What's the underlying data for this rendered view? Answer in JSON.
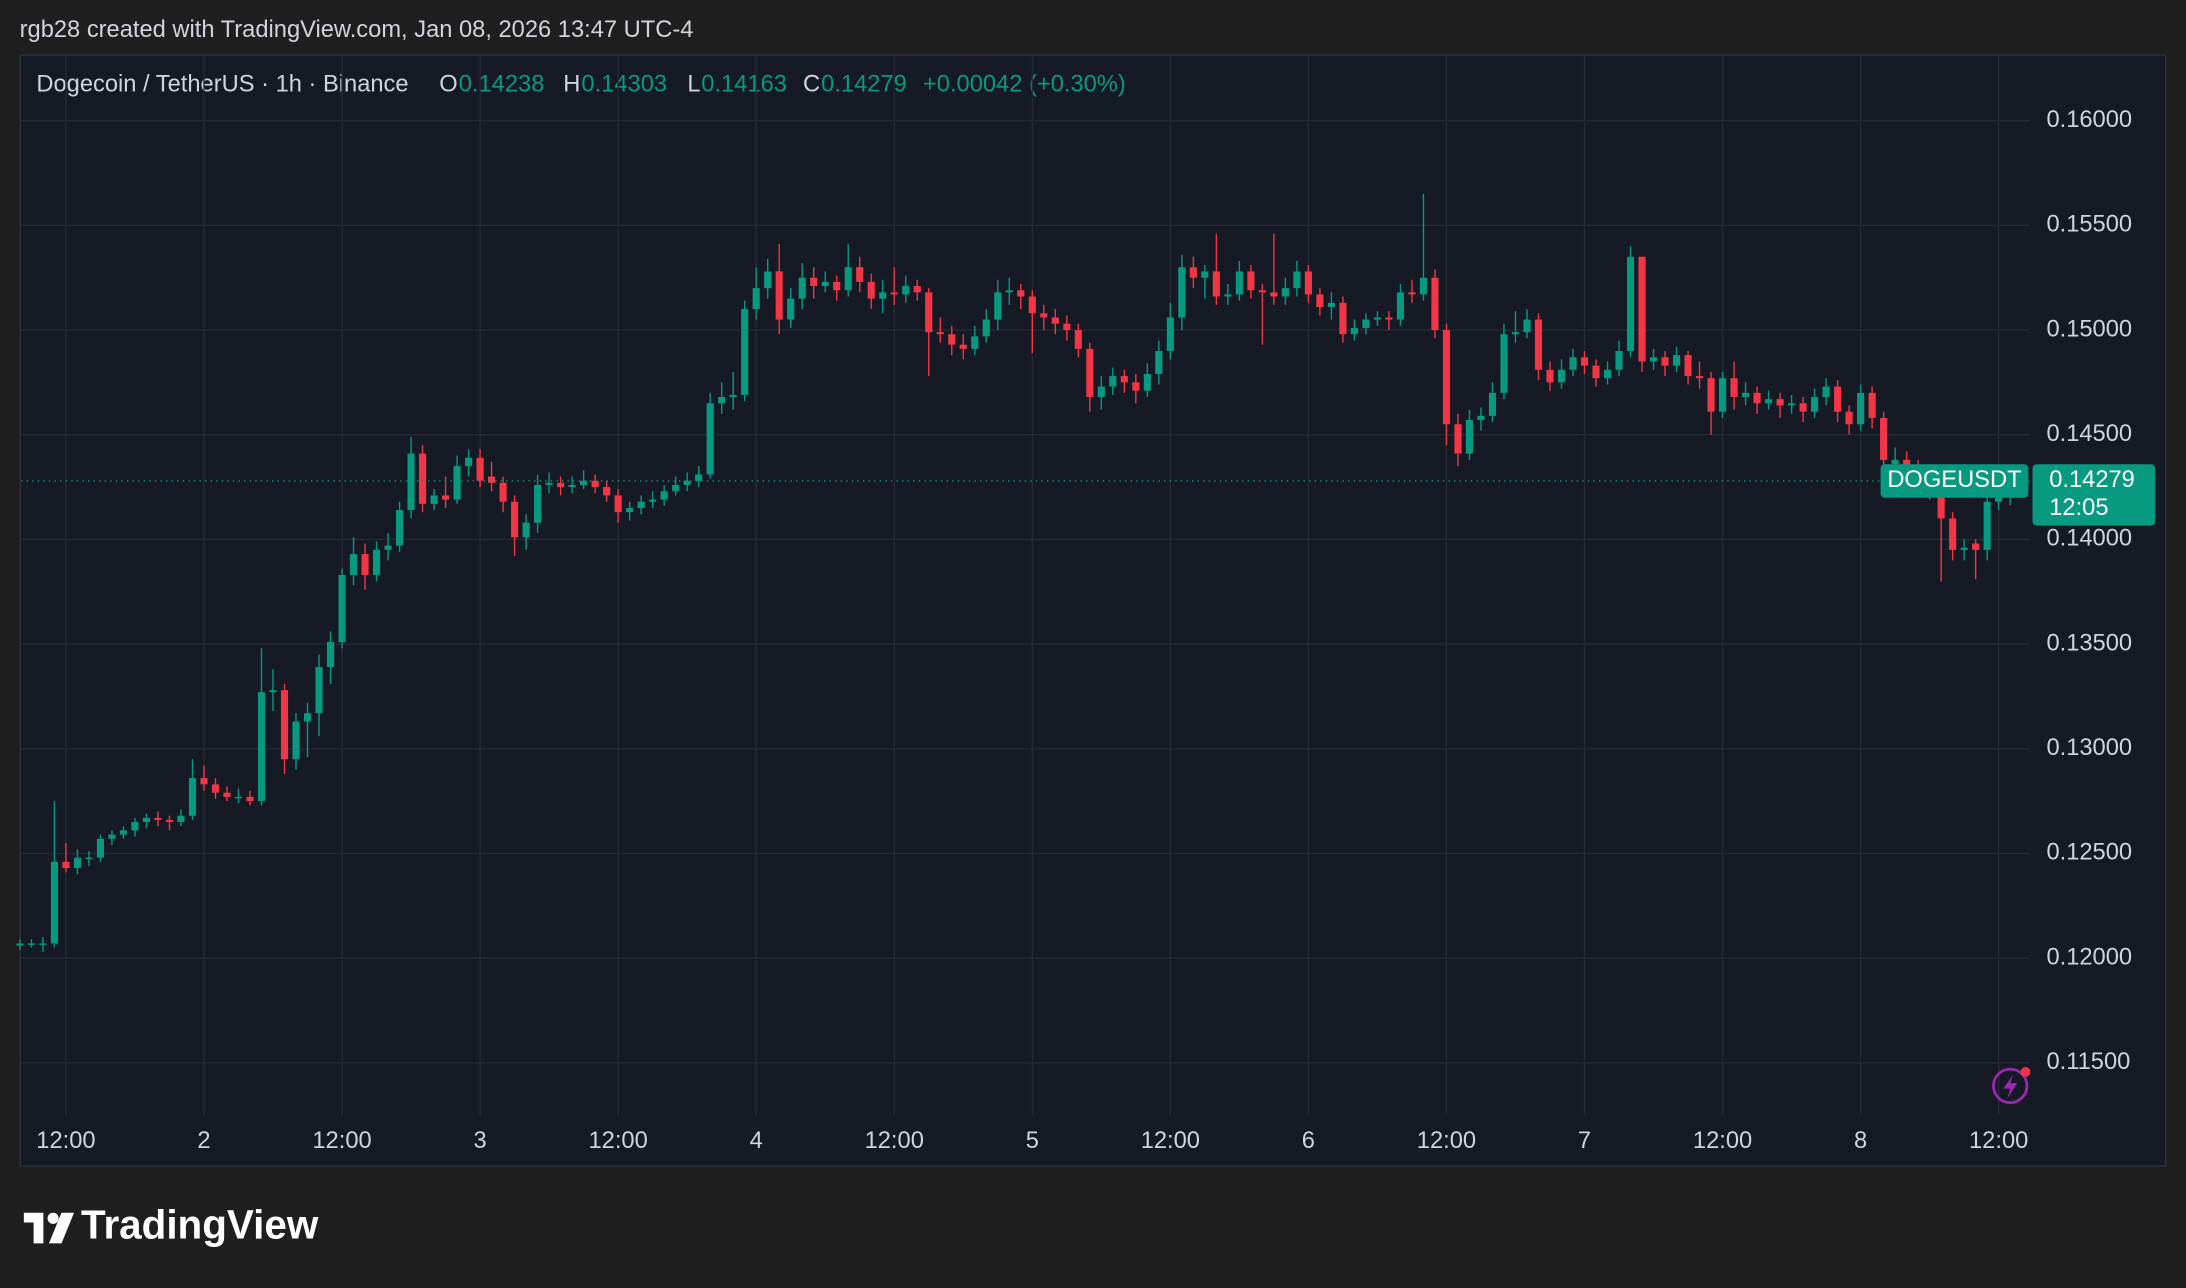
{
  "header": {
    "attribution": "rgb28 created with TradingView.com, Jan 08, 2026 13:47 UTC-4",
    "symbol_line": "Dogecoin / TetherUS · 1h · Binance",
    "labels": [
      "O",
      "H",
      "L",
      "C"
    ],
    "change": "+0.00042 (+0.30%)",
    "ticker": "DOGEUSDT",
    "countdown": "12:05"
  },
  "footer": {
    "brand": "TradingView"
  },
  "chart_data": {
    "type": "candlestick",
    "up_color": "#089981",
    "down_color": "#f23645",
    "grid": true,
    "xlim": [
      0.1,
      174.7
    ],
    "ylim": [
      0.1125,
      0.1631
    ],
    "xticks": [
      {
        "value": 4,
        "label": "12:00"
      },
      {
        "value": 16,
        "label": "2"
      },
      {
        "value": 28,
        "label": "12:00"
      },
      {
        "value": 40,
        "label": "3"
      },
      {
        "value": 52,
        "label": "12:00"
      },
      {
        "value": 64,
        "label": "4"
      },
      {
        "value": 76,
        "label": "12:00"
      },
      {
        "value": 88,
        "label": "5"
      },
      {
        "value": 100,
        "label": "12:00"
      },
      {
        "value": 112,
        "label": "6"
      },
      {
        "value": 124,
        "label": "12:00"
      },
      {
        "value": 136,
        "label": "7"
      },
      {
        "value": 148,
        "label": "12:00"
      },
      {
        "value": 160,
        "label": "8"
      },
      {
        "value": 172,
        "label": "12:00"
      }
    ],
    "yticks": [
      {
        "value": 0.115,
        "label": "0.11500"
      },
      {
        "value": 0.12,
        "label": "0.12000"
      },
      {
        "value": 0.125,
        "label": "0.12500"
      },
      {
        "value": 0.13,
        "label": "0.13000"
      },
      {
        "value": 0.135,
        "label": "0.13500"
      },
      {
        "value": 0.14,
        "label": "0.14000"
      },
      {
        "value": 0.145,
        "label": "0.14500"
      },
      {
        "value": 0.15,
        "label": "0.15000"
      },
      {
        "value": 0.155,
        "label": "0.15500"
      },
      {
        "value": 0.16,
        "label": "0.16000"
      }
    ],
    "ohlc": [
      [
        0.1206,
        0.1209,
        0.1204,
        0.1207
      ],
      [
        0.1207,
        0.1209,
        0.1205,
        0.1207
      ],
      [
        0.1207,
        0.121,
        0.1203,
        0.1207
      ],
      [
        0.1207,
        0.1275,
        0.1205,
        0.1246
      ],
      [
        0.1246,
        0.1255,
        0.1241,
        0.1243
      ],
      [
        0.1243,
        0.1252,
        0.124,
        0.1248
      ],
      [
        0.1248,
        0.1251,
        0.1244,
        0.1248
      ],
      [
        0.1248,
        0.1259,
        0.1246,
        0.1257
      ],
      [
        0.1257,
        0.1261,
        0.1254,
        0.1259
      ],
      [
        0.1259,
        0.1263,
        0.1257,
        0.1261
      ],
      [
        0.1261,
        0.1267,
        0.1258,
        0.1265
      ],
      [
        0.1265,
        0.1269,
        0.1262,
        0.1267
      ],
      [
        0.1267,
        0.127,
        0.1263,
        0.1266
      ],
      [
        0.1266,
        0.1268,
        0.1261,
        0.1265
      ],
      [
        0.1265,
        0.1271,
        0.1263,
        0.1268
      ],
      [
        0.1268,
        0.1295,
        0.1266,
        0.1286
      ],
      [
        0.1286,
        0.1292,
        0.128,
        0.1283
      ],
      [
        0.1283,
        0.1286,
        0.1276,
        0.1279
      ],
      [
        0.1279,
        0.1282,
        0.1275,
        0.1277
      ],
      [
        0.1277,
        0.1281,
        0.1274,
        0.1277
      ],
      [
        0.1277,
        0.128,
        0.1273,
        0.1275
      ],
      [
        0.1275,
        0.1348,
        0.1273,
        0.1327
      ],
      [
        0.1327,
        0.1338,
        0.1318,
        0.1328
      ],
      [
        0.1328,
        0.1331,
        0.1288,
        0.1295
      ],
      [
        0.1295,
        0.1317,
        0.129,
        0.1313
      ],
      [
        0.1313,
        0.1322,
        0.1296,
        0.1317
      ],
      [
        0.1317,
        0.1345,
        0.1306,
        0.1339
      ],
      [
        0.1339,
        0.1356,
        0.1331,
        0.1351
      ],
      [
        0.1351,
        0.1386,
        0.1348,
        0.1383
      ],
      [
        0.1383,
        0.1401,
        0.1378,
        0.1393
      ],
      [
        0.1393,
        0.1398,
        0.1376,
        0.1383
      ],
      [
        0.1383,
        0.1399,
        0.138,
        0.1395
      ],
      [
        0.1395,
        0.1403,
        0.139,
        0.1397
      ],
      [
        0.1397,
        0.1418,
        0.1394,
        0.1414
      ],
      [
        0.1414,
        0.1449,
        0.141,
        0.1441
      ],
      [
        0.1441,
        0.1445,
        0.1413,
        0.1417
      ],
      [
        0.1417,
        0.1424,
        0.1414,
        0.1421
      ],
      [
        0.1421,
        0.143,
        0.1415,
        0.1419
      ],
      [
        0.1419,
        0.144,
        0.1417,
        0.1435
      ],
      [
        0.1435,
        0.1443,
        0.143,
        0.1439
      ],
      [
        0.1439,
        0.1443,
        0.1425,
        0.1428
      ],
      [
        0.143,
        0.1437,
        0.1423,
        0.1427
      ],
      [
        0.1427,
        0.143,
        0.1413,
        0.1418
      ],
      [
        0.1418,
        0.1421,
        0.1392,
        0.1401
      ],
      [
        0.1401,
        0.1412,
        0.1395,
        0.1408
      ],
      [
        0.1408,
        0.1431,
        0.1403,
        0.1426
      ],
      [
        0.1426,
        0.1432,
        0.1422,
        0.1427
      ],
      [
        0.1427,
        0.143,
        0.1421,
        0.1425
      ],
      [
        0.1425,
        0.143,
        0.1422,
        0.1426
      ],
      [
        0.1426,
        0.1433,
        0.1424,
        0.1428
      ],
      [
        0.1428,
        0.1431,
        0.1422,
        0.1425
      ],
      [
        0.1425,
        0.1428,
        0.1418,
        0.1421
      ],
      [
        0.1421,
        0.1424,
        0.1408,
        0.1413
      ],
      [
        0.1413,
        0.1418,
        0.1409,
        0.1415
      ],
      [
        0.1415,
        0.1421,
        0.1412,
        0.1418
      ],
      [
        0.1418,
        0.1423,
        0.1415,
        0.1419
      ],
      [
        0.1419,
        0.1426,
        0.1416,
        0.1423
      ],
      [
        0.1423,
        0.143,
        0.1421,
        0.1426
      ],
      [
        0.1426,
        0.1432,
        0.1423,
        0.1428
      ],
      [
        0.1428,
        0.1435,
        0.1425,
        0.1431
      ],
      [
        0.1431,
        0.147,
        0.1429,
        0.1465
      ],
      [
        0.1465,
        0.1475,
        0.146,
        0.1468
      ],
      [
        0.1468,
        0.148,
        0.1462,
        0.1469
      ],
      [
        0.1469,
        0.1514,
        0.1466,
        0.151
      ],
      [
        0.151,
        0.153,
        0.1505,
        0.152
      ],
      [
        0.152,
        0.1534,
        0.1515,
        0.1528
      ],
      [
        0.1528,
        0.1541,
        0.1498,
        0.1505
      ],
      [
        0.1505,
        0.152,
        0.1501,
        0.1515
      ],
      [
        0.1515,
        0.1532,
        0.151,
        0.1525
      ],
      [
        0.1525,
        0.153,
        0.1515,
        0.1521
      ],
      [
        0.1521,
        0.1528,
        0.1518,
        0.1523
      ],
      [
        0.1523,
        0.1526,
        0.1514,
        0.1519
      ],
      [
        0.1519,
        0.1541,
        0.1516,
        0.153
      ],
      [
        0.153,
        0.1535,
        0.1518,
        0.1523
      ],
      [
        0.1523,
        0.1527,
        0.151,
        0.1515
      ],
      [
        0.1515,
        0.1524,
        0.1508,
        0.1518
      ],
      [
        0.1518,
        0.153,
        0.1512,
        0.1517
      ],
      [
        0.1517,
        0.1526,
        0.1513,
        0.1521
      ],
      [
        0.1521,
        0.1524,
        0.1514,
        0.1518
      ],
      [
        0.1518,
        0.152,
        0.1478,
        0.1499
      ],
      [
        0.1499,
        0.1506,
        0.1494,
        0.1498
      ],
      [
        0.1498,
        0.1502,
        0.1488,
        0.1493
      ],
      [
        0.1493,
        0.1498,
        0.1486,
        0.1491
      ],
      [
        0.1491,
        0.1502,
        0.1488,
        0.1497
      ],
      [
        0.1497,
        0.151,
        0.1494,
        0.1505
      ],
      [
        0.1505,
        0.1524,
        0.15,
        0.1518
      ],
      [
        0.1518,
        0.1525,
        0.1512,
        0.1519
      ],
      [
        0.1519,
        0.1522,
        0.151,
        0.1516
      ],
      [
        0.1516,
        0.1519,
        0.1489,
        0.1508
      ],
      [
        0.1508,
        0.1512,
        0.15,
        0.1506
      ],
      [
        0.1506,
        0.151,
        0.1498,
        0.1503
      ],
      [
        0.1503,
        0.1507,
        0.1495,
        0.15
      ],
      [
        0.15,
        0.1503,
        0.1487,
        0.1491
      ],
      [
        0.1491,
        0.1494,
        0.1461,
        0.1468
      ],
      [
        0.1468,
        0.1478,
        0.1462,
        0.1473
      ],
      [
        0.1473,
        0.1482,
        0.1469,
        0.1478
      ],
      [
        0.1478,
        0.1481,
        0.147,
        0.1475
      ],
      [
        0.1475,
        0.1479,
        0.1465,
        0.1471
      ],
      [
        0.1471,
        0.1484,
        0.1468,
        0.1479
      ],
      [
        0.1479,
        0.1495,
        0.1474,
        0.149
      ],
      [
        0.149,
        0.1513,
        0.1486,
        0.1506
      ],
      [
        0.1506,
        0.1536,
        0.15,
        0.153
      ],
      [
        0.153,
        0.1535,
        0.152,
        0.1525
      ],
      [
        0.1525,
        0.1531,
        0.1515,
        0.1528
      ],
      [
        0.1528,
        0.1546,
        0.1512,
        0.1516
      ],
      [
        0.1516,
        0.1522,
        0.1512,
        0.1517
      ],
      [
        0.1517,
        0.1533,
        0.1514,
        0.1528
      ],
      [
        0.1528,
        0.1531,
        0.1515,
        0.1519
      ],
      [
        0.1519,
        0.1522,
        0.1493,
        0.1518
      ],
      [
        0.1518,
        0.1546,
        0.1512,
        0.1516
      ],
      [
        0.1516,
        0.1525,
        0.1512,
        0.152
      ],
      [
        0.152,
        0.1533,
        0.1516,
        0.1528
      ],
      [
        0.1528,
        0.1531,
        0.1513,
        0.1517
      ],
      [
        0.1517,
        0.152,
        0.1507,
        0.1511
      ],
      [
        0.1511,
        0.1518,
        0.1505,
        0.1513
      ],
      [
        0.1513,
        0.1516,
        0.1494,
        0.1498
      ],
      [
        0.1498,
        0.1505,
        0.1495,
        0.1501
      ],
      [
        0.1501,
        0.1508,
        0.1498,
        0.1505
      ],
      [
        0.1505,
        0.1509,
        0.1502,
        0.1506
      ],
      [
        0.1506,
        0.1509,
        0.15,
        0.1505
      ],
      [
        0.1505,
        0.1522,
        0.1502,
        0.1518
      ],
      [
        0.1518,
        0.1524,
        0.1513,
        0.1517
      ],
      [
        0.1517,
        0.1565,
        0.1514,
        0.1525
      ],
      [
        0.1525,
        0.1529,
        0.1496,
        0.15
      ],
      [
        0.15,
        0.1503,
        0.1445,
        0.1455
      ],
      [
        0.1455,
        0.146,
        0.1435,
        0.1441
      ],
      [
        0.1441,
        0.1462,
        0.1438,
        0.1457
      ],
      [
        0.1457,
        0.1463,
        0.1452,
        0.1459
      ],
      [
        0.1459,
        0.1475,
        0.1456,
        0.147
      ],
      [
        0.147,
        0.1503,
        0.1467,
        0.1498
      ],
      [
        0.1498,
        0.1509,
        0.1494,
        0.1499
      ],
      [
        0.1499,
        0.151,
        0.1496,
        0.1505
      ],
      [
        0.1505,
        0.1508,
        0.1476,
        0.1481
      ],
      [
        0.1481,
        0.1485,
        0.1471,
        0.1475
      ],
      [
        0.1475,
        0.1486,
        0.1472,
        0.1481
      ],
      [
        0.1481,
        0.1491,
        0.1478,
        0.1487
      ],
      [
        0.1487,
        0.149,
        0.1479,
        0.1483
      ],
      [
        0.1483,
        0.1486,
        0.1473,
        0.1477
      ],
      [
        0.1477,
        0.1485,
        0.1474,
        0.1481
      ],
      [
        0.1481,
        0.1495,
        0.1478,
        0.149
      ],
      [
        0.149,
        0.154,
        0.1487,
        0.1535
      ],
      [
        0.1535,
        0.1535,
        0.148,
        0.1485
      ],
      [
        0.1485,
        0.1491,
        0.1481,
        0.1487
      ],
      [
        0.1487,
        0.149,
        0.1478,
        0.1483
      ],
      [
        0.1483,
        0.1492,
        0.148,
        0.1488
      ],
      [
        0.1488,
        0.149,
        0.1474,
        0.1478
      ],
      [
        0.1478,
        0.1485,
        0.1472,
        0.1477
      ],
      [
        0.1477,
        0.148,
        0.145,
        0.1461
      ],
      [
        0.1461,
        0.148,
        0.1458,
        0.1477
      ],
      [
        0.1477,
        0.1485,
        0.1462,
        0.1468
      ],
      [
        0.1468,
        0.1475,
        0.1464,
        0.147
      ],
      [
        0.147,
        0.1473,
        0.146,
        0.1465
      ],
      [
        0.1465,
        0.1471,
        0.1462,
        0.1467
      ],
      [
        0.1467,
        0.147,
        0.1458,
        0.1464
      ],
      [
        0.1464,
        0.1469,
        0.146,
        0.1465
      ],
      [
        0.1465,
        0.1468,
        0.1456,
        0.1461
      ],
      [
        0.1461,
        0.1472,
        0.1458,
        0.1468
      ],
      [
        0.1468,
        0.1477,
        0.1464,
        0.1473
      ],
      [
        0.1473,
        0.1476,
        0.1456,
        0.1461
      ],
      [
        0.1461,
        0.1464,
        0.145,
        0.1455
      ],
      [
        0.1455,
        0.1474,
        0.1452,
        0.147
      ],
      [
        0.147,
        0.1473,
        0.1453,
        0.1458
      ],
      [
        0.1458,
        0.1461,
        0.1432,
        0.1438
      ],
      [
        0.1436,
        0.1444,
        0.142,
        0.1438
      ],
      [
        0.1438,
        0.1442,
        0.143,
        0.1435
      ],
      [
        0.1435,
        0.1438,
        0.1426,
        0.1431
      ],
      [
        0.1431,
        0.1434,
        0.1419,
        0.1425
      ],
      [
        0.1425,
        0.1428,
        0.138,
        0.141
      ],
      [
        0.141,
        0.1413,
        0.139,
        0.1395
      ],
      [
        0.1395,
        0.14,
        0.139,
        0.1396
      ],
      [
        0.1398,
        0.14,
        0.1381,
        0.1395
      ],
      [
        0.1395,
        0.1422,
        0.139,
        0.1418
      ],
      [
        0.1418,
        0.1428,
        0.1414,
        0.1424
      ],
      [
        0.14238,
        0.14303,
        0.14163,
        0.14279
      ]
    ]
  }
}
